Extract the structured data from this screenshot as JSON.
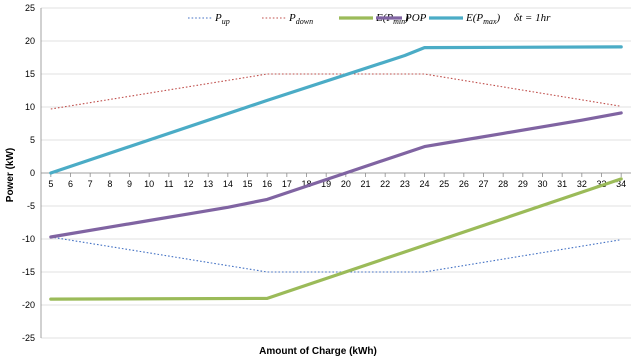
{
  "chart_data": {
    "type": "line",
    "xlabel": "Amount of Charge (kWh)",
    "ylabel": "Power (kW)",
    "ylim": [
      -25,
      25
    ],
    "yticks": [
      -25,
      -20,
      -15,
      -10,
      -5,
      0,
      5,
      10,
      15,
      20,
      25
    ],
    "xlim": [
      5,
      34
    ],
    "xticks": [
      5,
      6,
      7,
      8,
      9,
      10,
      11,
      12,
      13,
      14,
      15,
      16,
      17,
      18,
      19,
      20,
      21,
      22,
      23,
      24,
      25,
      26,
      27,
      28,
      29,
      30,
      31,
      32,
      33,
      34
    ],
    "grid": "horizontal",
    "legend_position": "top",
    "legend_note": "δt = 1hr",
    "series": [
      {
        "name": "P_up",
        "label_main": "P",
        "label_sub": "up",
        "style": "dotted",
        "color": "#4472C4",
        "x": [
          5,
          16,
          24,
          34
        ],
        "y": [
          -9.7,
          -15,
          -15,
          -10.1
        ]
      },
      {
        "name": "P_down",
        "label_main": "P",
        "label_sub": "down",
        "style": "dotted",
        "color": "#C0504D",
        "x": [
          5,
          16,
          24,
          34
        ],
        "y": [
          9.7,
          15,
          15,
          10.1
        ]
      },
      {
        "name": "E(P_min)",
        "label_main": "E(P",
        "label_sub": "min",
        "label_end": ")",
        "style": "solid",
        "color": "#9BBB59",
        "x": [
          5,
          16,
          34
        ],
        "y": [
          -19.1,
          -19,
          -0.9
        ]
      },
      {
        "name": "POP",
        "label_main": "POP",
        "label_sub": "",
        "label_end": "",
        "style": "solid",
        "color": "#8064A2",
        "x": [
          5,
          8,
          10,
          12,
          14,
          16,
          20,
          24,
          26,
          28,
          30,
          32,
          34
        ],
        "y": [
          -9.7,
          -8.2,
          -7.2,
          -6.2,
          -5.2,
          -4,
          0,
          4,
          5,
          6,
          7,
          8,
          9.1
        ]
      },
      {
        "name": "E(P_max)",
        "label_main": "E(P",
        "label_sub": "max",
        "label_end": ")",
        "style": "solid",
        "color": "#4BACC6",
        "x": [
          5,
          16,
          23,
          24,
          34
        ],
        "y": [
          0,
          11,
          17.8,
          19,
          19.1
        ]
      }
    ]
  }
}
